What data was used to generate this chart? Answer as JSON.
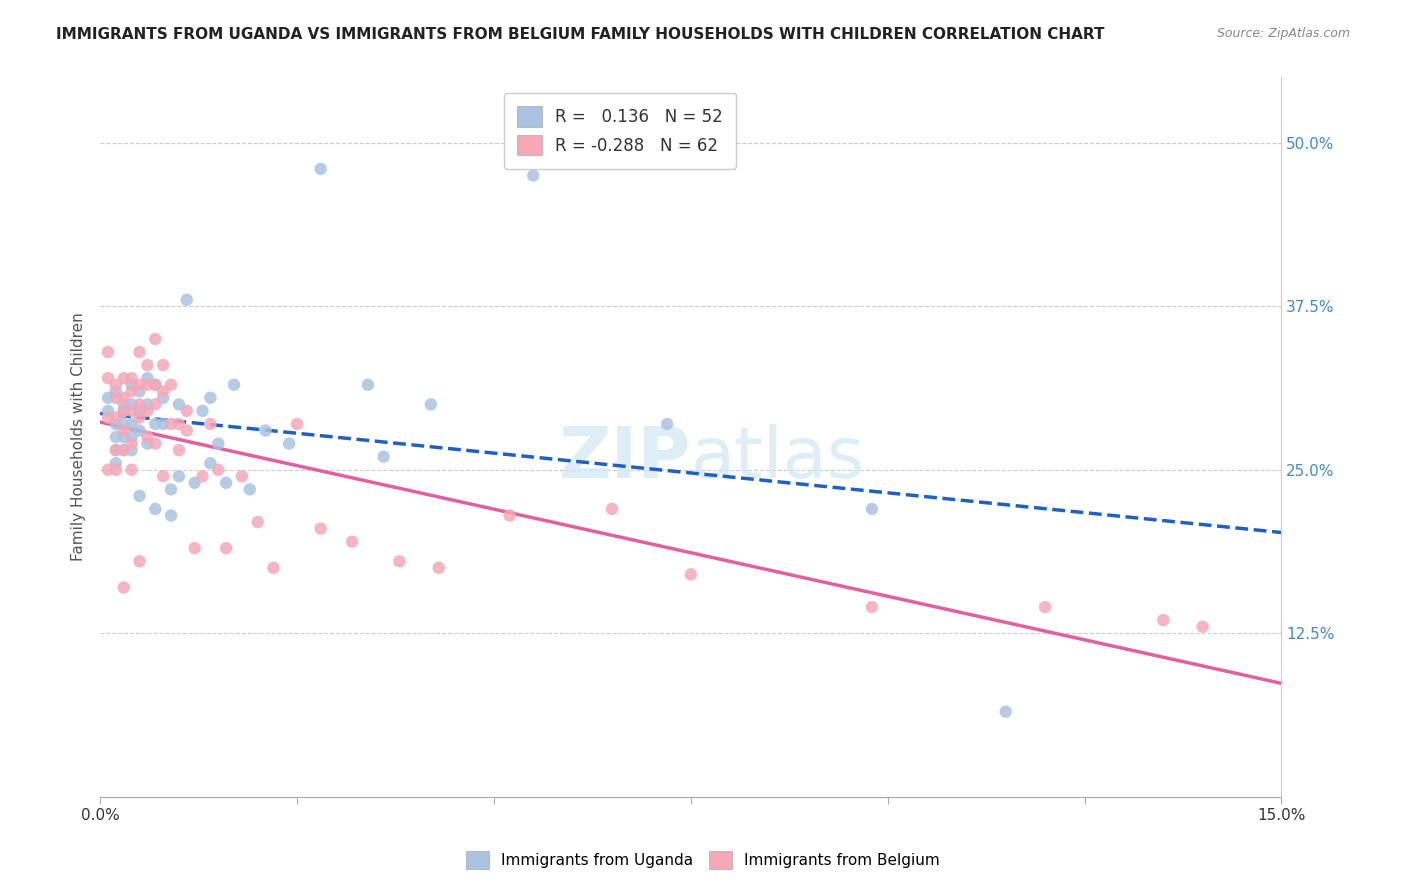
{
  "title": "IMMIGRANTS FROM UGANDA VS IMMIGRANTS FROM BELGIUM FAMILY HOUSEHOLDS WITH CHILDREN CORRELATION CHART",
  "source": "Source: ZipAtlas.com",
  "ylabel": "Family Households with Children",
  "ytick_vals": [
    0.125,
    0.25,
    0.375,
    0.5
  ],
  "ytick_labels": [
    "12.5%",
    "25.0%",
    "37.5%",
    "50.0%"
  ],
  "legend_uganda": "Immigrants from Uganda",
  "legend_belgium": "Immigrants from Belgium",
  "R_uganda": 0.136,
  "N_uganda": 52,
  "R_belgium": -0.288,
  "N_belgium": 62,
  "color_uganda": "#a8c4e0",
  "color_belgium": "#f4a8b8",
  "trendline_uganda_color": "#2060c0",
  "trendline_belgium_color": "#e060a0",
  "background_color": "#ffffff",
  "uganda_x": [
    0.001,
    0.001,
    0.002,
    0.002,
    0.002,
    0.002,
    0.002,
    0.003,
    0.003,
    0.003,
    0.003,
    0.003,
    0.004,
    0.004,
    0.004,
    0.004,
    0.004,
    0.005,
    0.005,
    0.005,
    0.005,
    0.006,
    0.006,
    0.006,
    0.007,
    0.007,
    0.007,
    0.008,
    0.008,
    0.009,
    0.009,
    0.01,
    0.01,
    0.011,
    0.012,
    0.013,
    0.014,
    0.014,
    0.015,
    0.016,
    0.017,
    0.019,
    0.021,
    0.024,
    0.028,
    0.034,
    0.036,
    0.042,
    0.055,
    0.072,
    0.098,
    0.115
  ],
  "uganda_y": [
    0.305,
    0.295,
    0.31,
    0.285,
    0.275,
    0.265,
    0.255,
    0.3,
    0.295,
    0.285,
    0.275,
    0.265,
    0.315,
    0.3,
    0.285,
    0.275,
    0.265,
    0.31,
    0.295,
    0.28,
    0.23,
    0.32,
    0.3,
    0.27,
    0.315,
    0.285,
    0.22,
    0.305,
    0.285,
    0.235,
    0.215,
    0.3,
    0.245,
    0.38,
    0.24,
    0.295,
    0.305,
    0.255,
    0.27,
    0.24,
    0.315,
    0.235,
    0.28,
    0.27,
    0.48,
    0.315,
    0.26,
    0.3,
    0.475,
    0.285,
    0.22,
    0.065
  ],
  "belgium_x": [
    0.001,
    0.001,
    0.001,
    0.001,
    0.002,
    0.002,
    0.002,
    0.002,
    0.002,
    0.003,
    0.003,
    0.003,
    0.003,
    0.003,
    0.003,
    0.004,
    0.004,
    0.004,
    0.004,
    0.004,
    0.005,
    0.005,
    0.005,
    0.005,
    0.005,
    0.006,
    0.006,
    0.006,
    0.006,
    0.007,
    0.007,
    0.007,
    0.007,
    0.008,
    0.008,
    0.008,
    0.009,
    0.009,
    0.01,
    0.01,
    0.011,
    0.011,
    0.012,
    0.013,
    0.014,
    0.015,
    0.016,
    0.018,
    0.02,
    0.022,
    0.025,
    0.028,
    0.032,
    0.038,
    0.043,
    0.052,
    0.065,
    0.075,
    0.098,
    0.12,
    0.135,
    0.14
  ],
  "belgium_y": [
    0.34,
    0.32,
    0.29,
    0.25,
    0.315,
    0.305,
    0.29,
    0.265,
    0.25,
    0.32,
    0.305,
    0.295,
    0.28,
    0.265,
    0.16,
    0.32,
    0.31,
    0.295,
    0.27,
    0.25,
    0.34,
    0.315,
    0.3,
    0.29,
    0.18,
    0.33,
    0.315,
    0.295,
    0.275,
    0.35,
    0.315,
    0.3,
    0.27,
    0.33,
    0.31,
    0.245,
    0.315,
    0.285,
    0.285,
    0.265,
    0.295,
    0.28,
    0.19,
    0.245,
    0.285,
    0.25,
    0.19,
    0.245,
    0.21,
    0.175,
    0.285,
    0.205,
    0.195,
    0.18,
    0.175,
    0.215,
    0.22,
    0.17,
    0.145,
    0.145,
    0.135,
    0.13
  ]
}
